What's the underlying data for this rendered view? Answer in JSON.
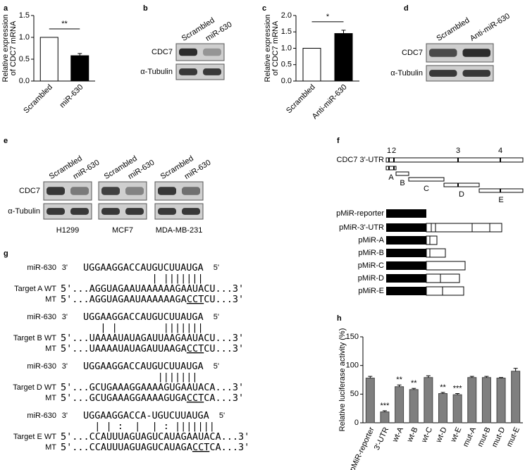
{
  "panel_labels": [
    "a",
    "b",
    "c",
    "d",
    "e",
    "f",
    "g",
    "h"
  ],
  "chart_data": [
    {
      "type": "bar",
      "ylabel": [
        "Relative expression",
        "of CDC7 mRNA"
      ],
      "categories": [
        "Scrambled",
        "miR-630"
      ],
      "values": [
        1.0,
        0.58
      ],
      "errors": [
        0,
        0.05
      ],
      "colors": [
        "#ffffff",
        "#000000"
      ],
      "significance": "**",
      "ylim": [
        0,
        1.5
      ],
      "yticks": [
        {
          "value": 0,
          "label": "0.0"
        },
        {
          "value": 0.5,
          "label": "0.5"
        },
        {
          "value": 1,
          "label": "1.0"
        },
        {
          "value": 1.5,
          "label": "1.5"
        }
      ]
    },
    {
      "type": "bar",
      "ylabel": [
        "Relative expression",
        "of CDC7 mRNA"
      ],
      "categories": [
        "Scrambled",
        "Anti-miR-630"
      ],
      "values": [
        1.0,
        1.45
      ],
      "errors": [
        0,
        0.1
      ],
      "colors": [
        "#ffffff",
        "#000000"
      ],
      "significance": "*",
      "ylim": [
        0,
        2
      ],
      "yticks": [
        {
          "value": 0,
          "label": "0.0"
        },
        {
          "value": 0.5,
          "label": "0.5"
        },
        {
          "value": 1,
          "label": "1.0"
        },
        {
          "value": 1.5,
          "label": "1.5"
        },
        {
          "value": 2,
          "label": "2.0"
        }
      ]
    },
    {
      "type": "bar",
      "ylabel": "Relative luciferase activity (%)",
      "categories": [
        "pMiR-reporter",
        "3'-UTR",
        "wt-A",
        "wt-B",
        "wt-C",
        "wt-D",
        "wt-E",
        "mut-A",
        "mut-B",
        "mut-D",
        "mut-E"
      ],
      "values": [
        78,
        19,
        63,
        58,
        79,
        51,
        49,
        79,
        79,
        78,
        90
      ],
      "errors": [
        3,
        2,
        3,
        2,
        3,
        2,
        2,
        2,
        2,
        1,
        5
      ],
      "significance": [
        null,
        "***",
        "**",
        "**",
        null,
        "**",
        "***",
        null,
        null,
        null,
        null
      ],
      "color": "#7f7f7f",
      "ylim": [
        0,
        150
      ],
      "yticks": [
        0,
        50,
        100,
        150
      ]
    }
  ],
  "blots": [
    {
      "lanes": [
        "Scrambled",
        "miR-630"
      ],
      "rows": [
        "CDC7",
        "α-Tubulin"
      ]
    },
    {
      "lanes": [
        "Scrambled",
        "Anti-miR-630"
      ],
      "rows": [
        "CDC7",
        "α-Tubulin"
      ]
    },
    {
      "groups": [
        {
          "name": "H1299",
          "lanes": [
            "Scrambled",
            "miR-630"
          ]
        },
        {
          "name": "MCF7",
          "lanes": [
            "Scrambled",
            "miR-630"
          ]
        },
        {
          "name": "MDA-MB-231",
          "lanes": [
            "Scrambled",
            "miR-630"
          ]
        }
      ],
      "rows": [
        "CDC7",
        "α-Tubulin"
      ]
    }
  ],
  "alignments": [
    {
      "mirna": {
        "name": "miR-630",
        "end3": "3'",
        "seq": "UGGAAGGACCAUGUCUUAUGA",
        "end5": "5'"
      },
      "pairs": "            | |||||||",
      "wt_label": "Target A WT",
      "wt": "5'...AGGUAGAAUAAAAAAGAAUACU...3'",
      "mt_label": "MT",
      "mt": [
        "5'...AGGUAGAAUAAAAAAGA",
        "CCT",
        "CU...3'"
      ]
    },
    {
      "mirna": {
        "name": "miR-630",
        "end3": "3'",
        "seq": "UGGAAGGACCAUGUCUUAUGA",
        "end5": "5'"
      },
      "pairs": "   | |        |||||||",
      "wt_label": "Target B WT",
      "wt": "5'...UAAAAUAUAGAUUAAGAAUACU...3'",
      "mt_label": "MT",
      "mt": [
        "5'...UAAAAUAUAGAUUAAGA",
        "CCT",
        "CU...3'"
      ]
    },
    {
      "mirna": {
        "name": "miR-630",
        "end3": "3'",
        "seq": "UGGAAGGACCAUGUCUUAUGA",
        "end5": "5'"
      },
      "pairs": "             |||||||",
      "wt_label": "Target D WT",
      "wt": "5'...GCUGAAAGGAAAAGUGAAUACA...3'",
      "mt_label": "MT",
      "mt": [
        "5'...GCUGAAAGGAAAAGUGA",
        "CCT",
        "CA...3'"
      ]
    },
    {
      "mirna": {
        "name": "miR-630",
        "end3": "3'",
        "seq": "UGGAAGGACCA-UGUCUUAUGA",
        "end5": "5'"
      },
      "pairs": "  | | :  |  | : |||||||",
      "wt_label": "Target E WT",
      "wt": "5'...CCAUUUAGUAGUCAUAGAAUACA...3'",
      "mt_label": "MT",
      "mt": [
        "5'...CCAUUUAGUAGUCAUAGA",
        "CCT",
        "CA...3'"
      ]
    }
  ],
  "utr_map": {
    "label": "CDC7 3'-UTR",
    "sites": [
      "1",
      "2",
      "3",
      "4"
    ],
    "fragments": [
      "A",
      "B",
      "C",
      "D",
      "E"
    ],
    "constructs": [
      "pMiR-reporter",
      "pMiR-3'-UTR",
      "pMiR-A",
      "pMiR-B",
      "pMiR-C",
      "pMiR-D",
      "pMiR-E"
    ]
  }
}
